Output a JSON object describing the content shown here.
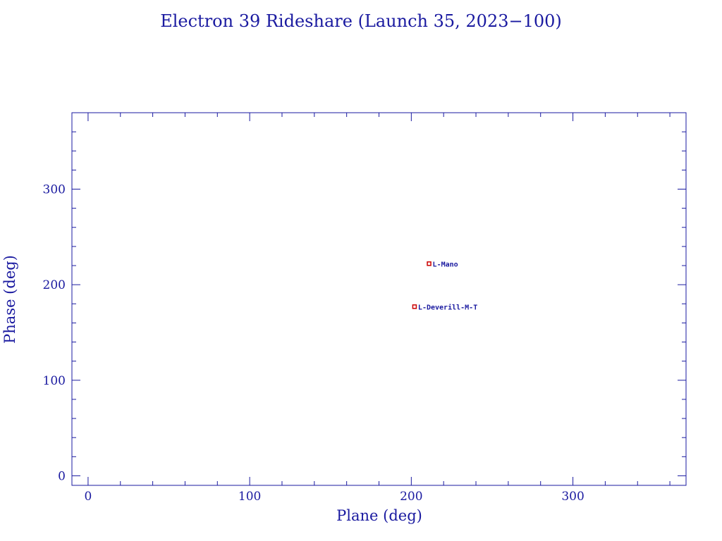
{
  "chart_data": {
    "type": "scatter",
    "title": "Electron 39 Rideshare (Launch 35, 2023−100)",
    "xlabel": "Plane (deg)",
    "ylabel": "Phase (deg)",
    "xlim": [
      -10,
      370
    ],
    "ylim": [
      -10,
      380
    ],
    "x_ticks": [
      0,
      100,
      200,
      300
    ],
    "y_ticks": [
      0,
      100,
      200,
      300
    ],
    "x_minor_step": 20,
    "y_minor_step": 20,
    "grid": false,
    "colors": {
      "axis": "#1a1aa0",
      "marker": "#cc0000"
    },
    "points": [
      {
        "label": "L-Mano",
        "x": 211,
        "y": 222
      },
      {
        "label": "L-Deverill-M-T",
        "x": 202,
        "y": 177
      }
    ]
  }
}
